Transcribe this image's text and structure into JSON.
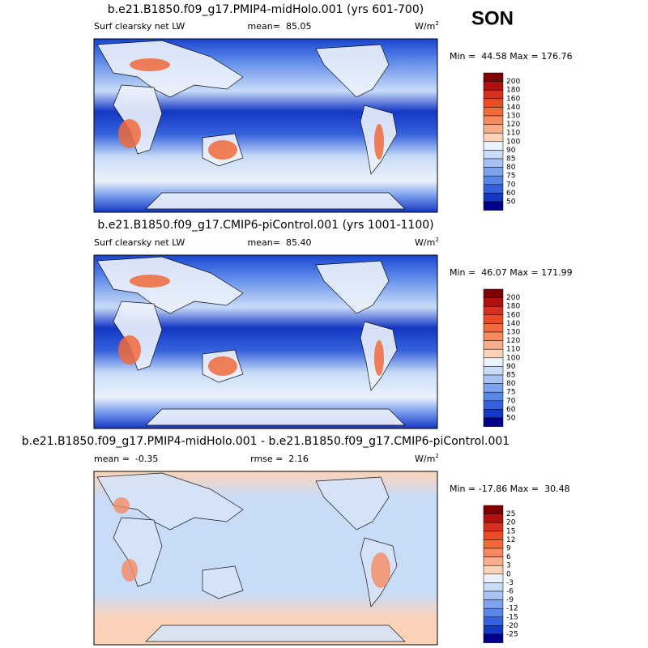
{
  "season": "SON",
  "panels": [
    {
      "title": "b.e21.B1850.f09_g17.PMIP4-midHolo.001 (yrs 601-700)",
      "left_label": "Surf clearsky net LW",
      "center_label": "mean=  85.05",
      "units": "W/m",
      "units_sup": "2",
      "minmax": "Min =  44.58 Max = 176.76",
      "colorbar": {
        "labels": [
          200,
          180,
          160,
          140,
          130,
          120,
          110,
          100,
          90,
          85,
          80,
          75,
          70,
          60,
          50
        ],
        "colors": [
          "#800000",
          "#b01010",
          "#d7301f",
          "#ea4a25",
          "#f06a3c",
          "#f58a60",
          "#f8ad8c",
          "#fcd3b8",
          "#ecf2fb",
          "#c8dcf8",
          "#a6c3f3",
          "#7ea3ee",
          "#5a86e8",
          "#3562dc",
          "#1437c4",
          "#00008b"
        ]
      }
    },
    {
      "title": "b.e21.B1850.f09_g17.CMIP6-piControl.001 (yrs 1001-1100)",
      "left_label": "Surf clearsky net LW",
      "center_label": "mean=  85.40",
      "units": "W/m",
      "units_sup": "2",
      "minmax": "Min =  46.07 Max = 171.99",
      "colorbar": {
        "labels": [
          200,
          180,
          160,
          140,
          130,
          120,
          110,
          100,
          90,
          85,
          80,
          75,
          70,
          60,
          50
        ],
        "colors": [
          "#800000",
          "#b01010",
          "#d7301f",
          "#ea4a25",
          "#f06a3c",
          "#f58a60",
          "#f8ad8c",
          "#fcd3b8",
          "#ecf2fb",
          "#c8dcf8",
          "#a6c3f3",
          "#7ea3ee",
          "#5a86e8",
          "#3562dc",
          "#1437c4",
          "#00008b"
        ]
      }
    },
    {
      "title": "b.e21.B1850.f09_g17.PMIP4-midHolo.001 - b.e21.B1850.f09_g17.CMIP6-piControl.001",
      "left_label": "mean =  -0.35",
      "center_label": "rmse =  2.16",
      "units": "W/m",
      "units_sup": "2",
      "minmax": "Min = -17.86 Max =  30.48",
      "colorbar": {
        "labels": [
          25,
          20,
          15,
          12,
          9,
          6,
          3,
          0,
          -3,
          -6,
          -9,
          -12,
          -15,
          -20,
          -25
        ],
        "colors": [
          "#800000",
          "#b01010",
          "#d7301f",
          "#ea4a25",
          "#f06a3c",
          "#f58a60",
          "#f8ad8c",
          "#fcd3b8",
          "#ecf2fb",
          "#c8dcf8",
          "#a6c3f3",
          "#7ea3ee",
          "#5a86e8",
          "#3562dc",
          "#1437c4",
          "#00008b"
        ]
      }
    }
  ]
}
